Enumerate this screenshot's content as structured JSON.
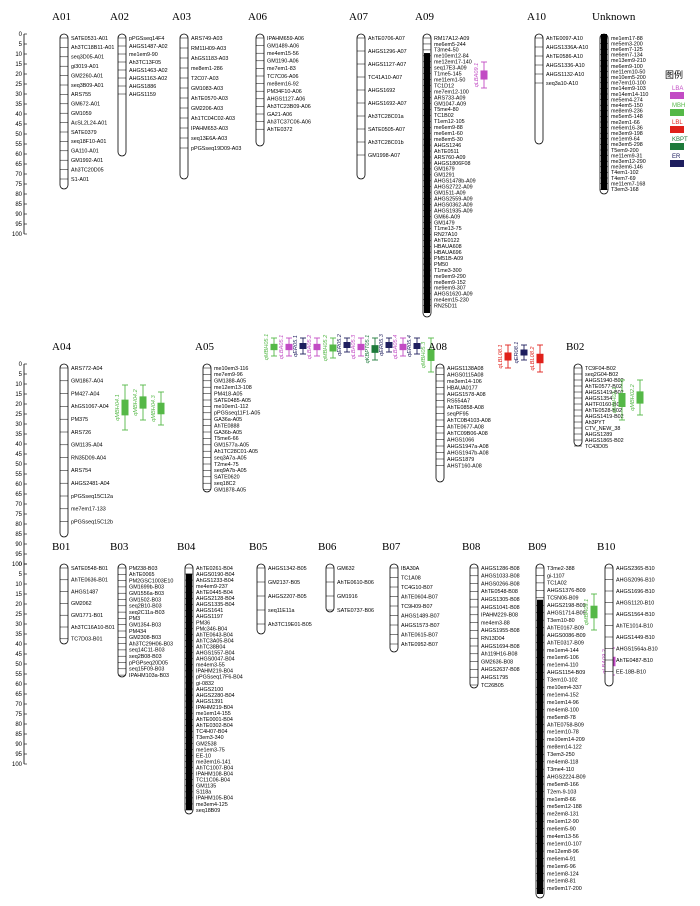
{
  "scale": {
    "ticks": [
      "0",
      "5",
      "10",
      "15",
      "20",
      "25",
      "30",
      "35",
      "40",
      "45",
      "50",
      "55",
      "60",
      "65",
      "70",
      "75",
      "80",
      "85",
      "90",
      "95",
      "100"
    ]
  },
  "legend": {
    "title": "图例",
    "items": [
      {
        "label": "LBA",
        "color": "#c24bc4"
      },
      {
        "label": "MBH",
        "color": "#55b847"
      },
      {
        "label": "LBL",
        "color": "#e0201a"
      },
      {
        "label": "KBPT",
        "color": "#1d7a3a"
      },
      {
        "label": "ER",
        "color": "#1e1e5e"
      }
    ]
  },
  "colors": {
    "chromosome": "#ffffff",
    "outline": "#000000",
    "dense_band": "#000000"
  },
  "groups": [
    {
      "id": "A01",
      "markers": [
        "SATE0531-A01",
        "Ah3TC18B11-A01",
        "seq3D05-A01",
        "gi3019-A01",
        "GM2260-A01",
        "seq3B09-A01",
        "ARS755",
        "GM672-A01",
        "GM1059",
        "AcSL2L24-A01",
        "SATE0379",
        "seq18F10-A01",
        "GA110-A01",
        "GM1992-A01",
        "Ah3TC20D05",
        "S1-A01"
      ]
    },
    {
      "id": "A02",
      "markers": [
        "pPGSseq14F4",
        "AHGS1487-A02",
        "me1em9-90",
        "Ah3TC13F05",
        "AHGS1463-A02",
        "AHGS1163-A02",
        "AHGS1886",
        "AHGS1159"
      ]
    },
    {
      "id": "A03",
      "markers": [
        "ARS749-A03",
        "RM11H09-A03",
        "AhGS1183-A03",
        "me8em1-286",
        "T2C07-A03",
        "GM1083-A03",
        "AhTE0570-A03",
        "GM2206-A03",
        "Ah1TC04C02-A03",
        "IPAHM653-A03",
        "seq13E6A-A03",
        "pPGSseq19D09-A03"
      ]
    },
    {
      "id": "A06",
      "markers": [
        "IPAHM659-A06",
        "GM1489-A06",
        "me4em15-56",
        "GM1190-A06",
        "me7em1-83",
        "TC7C06-A06",
        "me8em16-92",
        "PM34F10-A06",
        "AHGS1127-A06",
        "Ah3TC23B09-A06",
        "GA21-A06",
        "Ah3TC37C06-A06",
        "AhTE0372"
      ]
    },
    {
      "id": "A07",
      "markers": [
        "AhTE0706-A07",
        "AHGS1296-A07",
        "AHGS1127-A07",
        "TC41A10-A07",
        "AHGS1692",
        "AHGS1692-A07",
        "Ah3TC28C01a",
        "SATE0505-A07",
        "Ah3TC28C01b",
        "GM1998-A07"
      ]
    },
    {
      "id": "A09",
      "markers": [
        "RM17A12-A09",
        "me6em5-244",
        "T3me4-50",
        "me10em12-84",
        "me12em17-140",
        "seq17E3-A09",
        "T1me5-145",
        "me11em1-50",
        "TC1D12",
        "me7em12-100",
        "ARS733-A09",
        "GM1047-A09",
        "T5me4-80",
        "TC1B02",
        "T1em12-105",
        "me6em9-88",
        "me6em1-60",
        "me8em5-30",
        "AHGS1246",
        "AhTE0511",
        "ARS760-A09",
        "AHGS1806F08",
        "GM1679",
        "GM1291",
        "AHGS1478b-A09",
        "AHGS2722-A09",
        "GM1511-A09",
        "AHGS2559-A09",
        "AHGS0362-A09",
        "AHGS1935-A09",
        "GM66-A09",
        "GM1479",
        "T1me13-75",
        "RN27A10",
        "AhTE0122",
        "HBAUA608",
        "HBAUA696",
        "PM51B-A09",
        "PM50",
        "T1me3-300",
        "me9em9-290",
        "me8em9-152",
        "me9em9-307",
        "AHGS1620-A09",
        "me4em15-230",
        "RN25D11"
      ],
      "qtls": [
        {
          "name": "qLBA09.1",
          "color": "#c24bc4"
        }
      ]
    },
    {
      "id": "A10",
      "markers": [
        "AhTE0097-A10",
        "AHGS1336A-A10",
        "AhTE0586-A10",
        "AHGS1336-A10",
        "AHGS1132-A10",
        "seq3a10-A10"
      ]
    },
    {
      "id": "Unknown",
      "markers": [
        "me1em17-88",
        "me5em3-200",
        "me6em7-125",
        "me6em7-134",
        "me13em9-210",
        "me6em9-100",
        "me11em10-50",
        "me10em5-200",
        "me7em10-100",
        "me14em9-103",
        "me14em14-110",
        "me5em4-274",
        "me4em5-150",
        "me8em9-236",
        "me5em5-148",
        "me2em1-66",
        "me6em16-36",
        "me3em9-198",
        "me1em9-64",
        "me3em5-298",
        "T5em9-200",
        "me11em9-31",
        "me3em12-290",
        "me3em6-146",
        "T4em1-102",
        "T4em7-69",
        "me11em7-168",
        "T3em3-168"
      ]
    },
    {
      "id": "A04",
      "markers": [
        "ARS772-A04",
        "GM1867-A04",
        "PM427-A04",
        "AhGS1067-A04",
        "PM375",
        "ARS726",
        "GM1135-A04",
        "RN35D09-A04",
        "ARS754",
        "AHGS2481-A04",
        "pPGSseq15C12a",
        "me7em17-133",
        "pPGSseq15C12b"
      ],
      "qtls": [
        {
          "name": "qMBH04.1",
          "color": "#55b847"
        },
        {
          "name": "qMBH04.2",
          "color": "#55b847"
        },
        {
          "name": "qMBH04.3",
          "color": "#55b847"
        }
      ]
    },
    {
      "id": "A05",
      "markers": [
        "me10em3-116",
        "me7em9-96",
        "GM1388-A05",
        "me12em13-108",
        "PM418-A05",
        "SATE0485-A05",
        "me10em1-112",
        "pPGSseq11F1-A05",
        "GA36a-A05",
        "AhTE0888",
        "GA36b-A05",
        "T5me6-66",
        "GM1577a-A05",
        "Ah1TC28C01-A05",
        "seq3A7a-A05",
        "T2me4-75",
        "seq9A7b-A05",
        "SATE0620",
        "seq18C2",
        "GM1878-A05"
      ],
      "qtls": [
        {
          "name": "qMBH05.1",
          "color": "#55b847"
        },
        {
          "name": "qLBA05.1",
          "color": "#c24bc4"
        },
        {
          "name": "qER05.1",
          "color": "#1e1e5e"
        },
        {
          "name": "qLBA05.2",
          "color": "#c24bc4"
        },
        {
          "name": "qMBH05.2",
          "color": "#55b847"
        },
        {
          "name": "qER05.2",
          "color": "#1e1e5e"
        },
        {
          "name": "qLBA05.3",
          "color": "#c24bc4"
        },
        {
          "name": "qKBPT05.1",
          "color": "#1d7a3a"
        },
        {
          "name": "qER05.3",
          "color": "#1e1e5e"
        },
        {
          "name": "qLBA05.4",
          "color": "#c24bc4"
        },
        {
          "name": "qER05.4",
          "color": "#1e1e5e"
        },
        {
          "name": "qMBH05.3",
          "color": "#55b847"
        }
      ]
    },
    {
      "id": "A08",
      "markers": [
        "AHGS1138A08",
        "AHGS0115A08",
        "me3em14-106",
        "HBAUA0177",
        "AHGS1578-A08",
        "RS554A7",
        "AhTE0858-A08",
        "seqPF95",
        "AhTC0B4103-A08",
        "AhTE0677-A08",
        "AhTC09B06-A08",
        "AHGS1066",
        "AHGS1947a-A08",
        "AHGS1947b-A08",
        "AHGS1879",
        "AHST160-A08"
      ],
      "qtls": [
        {
          "name": "qLBL08.1",
          "color": "#e0201a"
        },
        {
          "name": "qER08.1",
          "color": "#1e1e5e"
        },
        {
          "name": "qLBL08.2",
          "color": "#e0201a"
        }
      ]
    },
    {
      "id": "B02",
      "markers": [
        "TC9F04-B02",
        "seq2G04-B02",
        "AHGS1940-B02",
        "AhTE0577-B02",
        "AHGS1419-B02",
        "AHGS1354",
        "AHTF0160-B02",
        "AhTE0528-B02",
        "AHGS1419-B02",
        "Ah3PYT",
        "CTV_NEW_38",
        "AHGS1289",
        "AHGS1865-B02",
        "TC43D05"
      ],
      "qtls": [
        {
          "name": "qMBH02.1",
          "color": "#55b847"
        },
        {
          "name": "qMBH02.2",
          "color": "#55b847"
        }
      ]
    },
    {
      "id": "B01",
      "markers": [
        "SATE0548-B01",
        "AhTE0636-B01",
        "AHGS1487",
        "GM2062",
        "GM1771-B01",
        "Ah3TC16A10-B01",
        "TC7D03-B01"
      ]
    },
    {
      "id": "B03",
      "markers": [
        "PM238-B03",
        "AhTE0065",
        "PM2GSC1003E10",
        "GM1699b-B03",
        "GM1556a-B03",
        "GM1502-B03",
        "seq2B10-B03",
        "seq2C11a-B03",
        "PM3",
        "GM1354-B03",
        "PM434",
        "GM2308-B03",
        "Ah3TC29H06-B03",
        "seq14C11-B03",
        "seq2B08-B03",
        "pPGPseq20D05",
        "seq15F09-B03",
        "IPAHM103a-B03"
      ]
    },
    {
      "id": "B04",
      "markers": [
        "AhTE0261-B04",
        "AHGS0190-B04",
        "AhGS1233-B04",
        "me4em9-237",
        "AhTE0445-B04",
        "AHGS2128-B04",
        "AHGS1335-B04",
        "AHGS1641",
        "AHGS1197",
        "PM36",
        "PMc346-B04",
        "AhTE0643-B04",
        "AhTC3A05-B04",
        "AhTC38B04",
        "AHGS1557-B04",
        "AHGS0047-B04",
        "me4em3-55",
        "IPAHM219-B04",
        "pPGSseq17F6-B04",
        "gi-0832",
        "AHGS2100",
        "AHGS2280-B04",
        "AHGS1391",
        "IPAHM219-B04",
        "me1em14-155",
        "AhTE0001-B04",
        "AhTE0302-B04",
        "TC4H07-B04",
        "T3em3-340",
        "GM2538",
        "me1em3-75",
        "EE-10",
        "me3em16-141",
        "AhTC1007-B04",
        "IPAHM108-B04",
        "TC11C06-B04",
        "GM1135",
        "S118a",
        "IPAHM105-B04",
        "me3em4-125",
        "seq18B09"
      ]
    },
    {
      "id": "B05",
      "markers": [
        "AHGS1342-B05",
        "GM2137-B05",
        "AHGS2207-B05",
        "seq11E11a",
        "Ah3TC19E01-B05"
      ]
    },
    {
      "id": "B06",
      "markers": [
        "GM632",
        "AhTE0610-B06",
        "GM1916",
        "SATE0737-B06"
      ]
    },
    {
      "id": "B07",
      "markers": [
        "IBA30A",
        "TC1A08",
        "TC4G10-B07",
        "AhTE0604-B07",
        "TC9H09-B07",
        "AHGS1489-B07",
        "AHGS1573-B07",
        "AhTE0615-B07",
        "AhTE0952-B07"
      ]
    },
    {
      "id": "B08",
      "markers": [
        "AHGS1286-B08",
        "AHGS1033-B08",
        "AHGS0266-B08",
        "AhTE0548-B08",
        "AHGS1305-B08",
        "AHGS1041-B08",
        "IPAHM229-B08",
        "me4em3-88",
        "AHGS1955-B08",
        "RN13D04",
        "AHGS1694-B08",
        "Ah119H16-B08",
        "GM2636-B08",
        "AHGS2637-B08",
        "AHGS1795",
        "TC26B05"
      ]
    },
    {
      "id": "B09",
      "markers": [
        "T3me2-388",
        "gi-1107",
        "TC1A02",
        "AHGS1376-B09",
        "TC5N06-B09",
        "AHGS2198-B09",
        "AHGS1714-B09",
        "T3em10-80",
        "AhTE0167-B09",
        "AHGS0086-B09",
        "AhTE0317-B09",
        "me1em4-144",
        "me1em6-106",
        "me1em4-110",
        "AHGS1154-B09",
        "T3em10-102",
        "me10em4-337",
        "me1em4-152",
        "me1em14-96",
        "me4em8-100",
        "me5em8-78",
        "AhTE0758-B09",
        "me1em10-78",
        "me10em14-209",
        "me8em14-122",
        "T3em3-250",
        "me4em8-118",
        "T3me4-110",
        "AHGS2224-B09",
        "me5em8-166",
        "T2em-9-103",
        "me1em8-66",
        "me5em12-188",
        "me2em8-131",
        "me1em12-90",
        "me6em5-90",
        "me4em13-56",
        "me1em10-107",
        "me12em8-96",
        "me6em4-91",
        "me1em6-96",
        "me1em8-124",
        "me1em8-81",
        "me9em17-200"
      ],
      "qtls": [
        {
          "name": "qMBH09.1",
          "color": "#55b847"
        },
        {
          "name": "qLBA09.2",
          "color": "#c24bc4"
        }
      ]
    },
    {
      "id": "B10",
      "markers": [
        "AHGS2365-B10",
        "AHGS2096-B10",
        "AHGS1696-B10",
        "AHGS1120-B10",
        "AHGS1564-B10",
        "AhTE1014-B10",
        "AHGS1449-B10",
        "AHGS1564a-B10",
        "AhTE0487-B10",
        "EE-18B-B10"
      ]
    }
  ]
}
